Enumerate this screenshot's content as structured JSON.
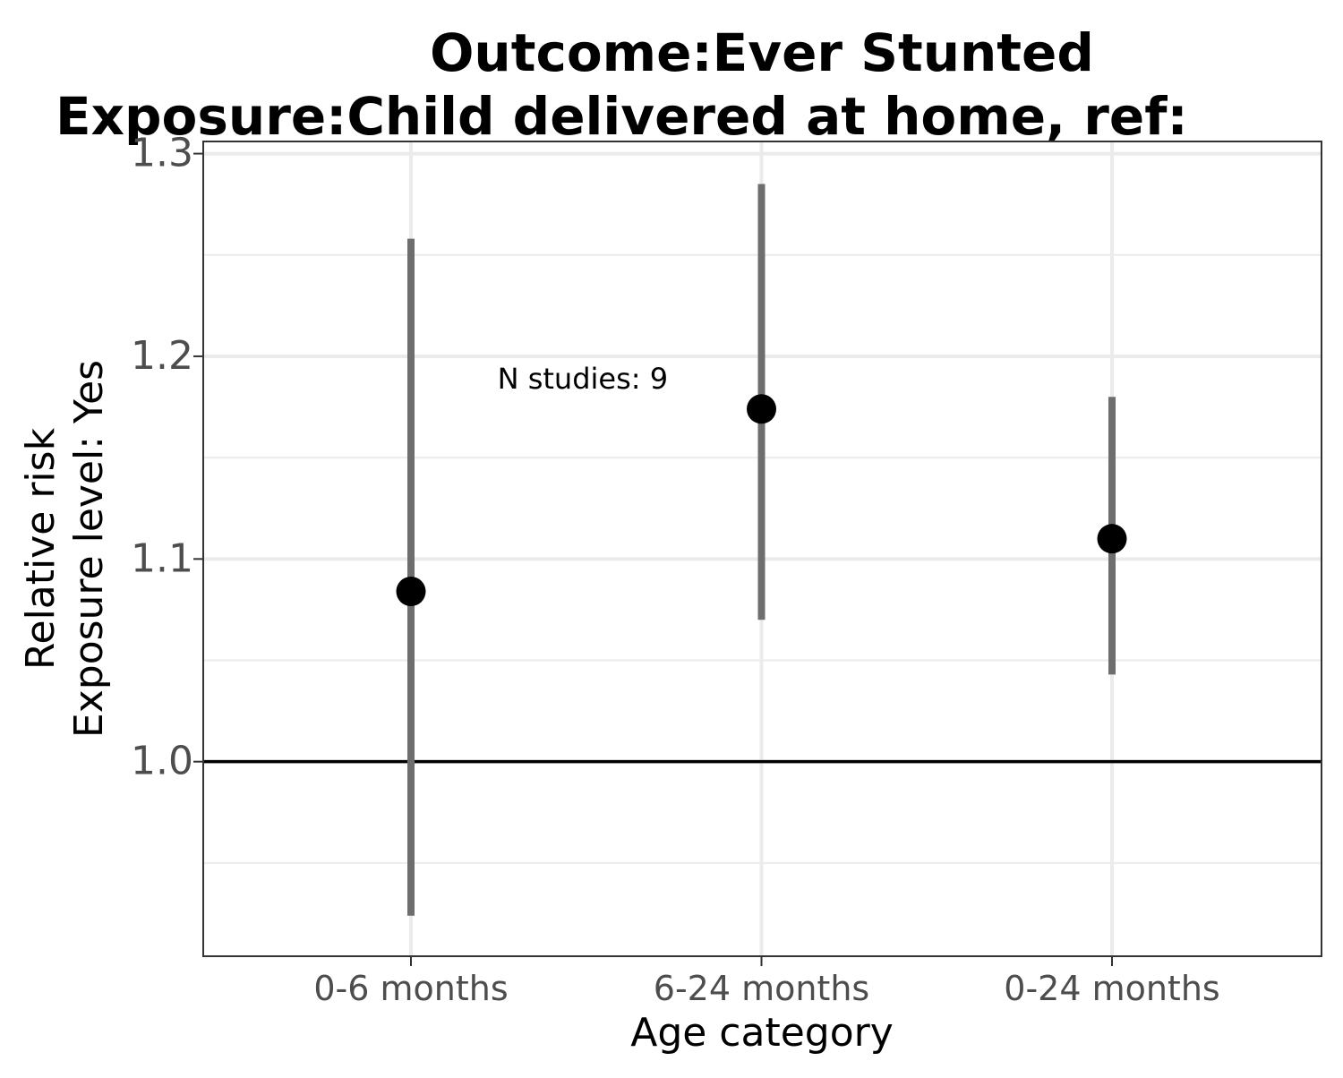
{
  "chart_data": {
    "type": "scatter",
    "title_line1": "Outcome:Ever Stunted",
    "title_line2": "Exposure:Child delivered at home, ref:",
    "xlabel": "Age category",
    "ylabel_line1": "Relative risk",
    "ylabel_line2": "Exposure level: Yes",
    "categories": [
      "0-6 months",
      "6-24 months",
      "0-24 months"
    ],
    "points": [
      {
        "category": "0-6 months",
        "estimate": 1.084,
        "ci_lower": 0.924,
        "ci_upper": 1.258
      },
      {
        "category": "6-24 months",
        "estimate": 1.174,
        "ci_lower": 1.07,
        "ci_upper": 1.285
      },
      {
        "category": "0-24 months",
        "estimate": 1.11,
        "ci_lower": 1.043,
        "ci_upper": 1.18
      }
    ],
    "reference_line": 1.0,
    "ylim": [
      0.904,
      1.306
    ],
    "yticks": [
      1.0,
      1.1,
      1.2,
      1.3
    ],
    "ytick_labels": [
      "1.0",
      "1.1",
      "1.2",
      "1.3"
    ],
    "annotation": {
      "text": "N studies: 9",
      "category_position": 1.49,
      "y": 1.184
    },
    "grid": true,
    "legend": "none",
    "colors": {
      "errorbar": "#6e6e6e",
      "point": "#000000",
      "grid": "#ebebeb",
      "refline": "#000000"
    }
  }
}
